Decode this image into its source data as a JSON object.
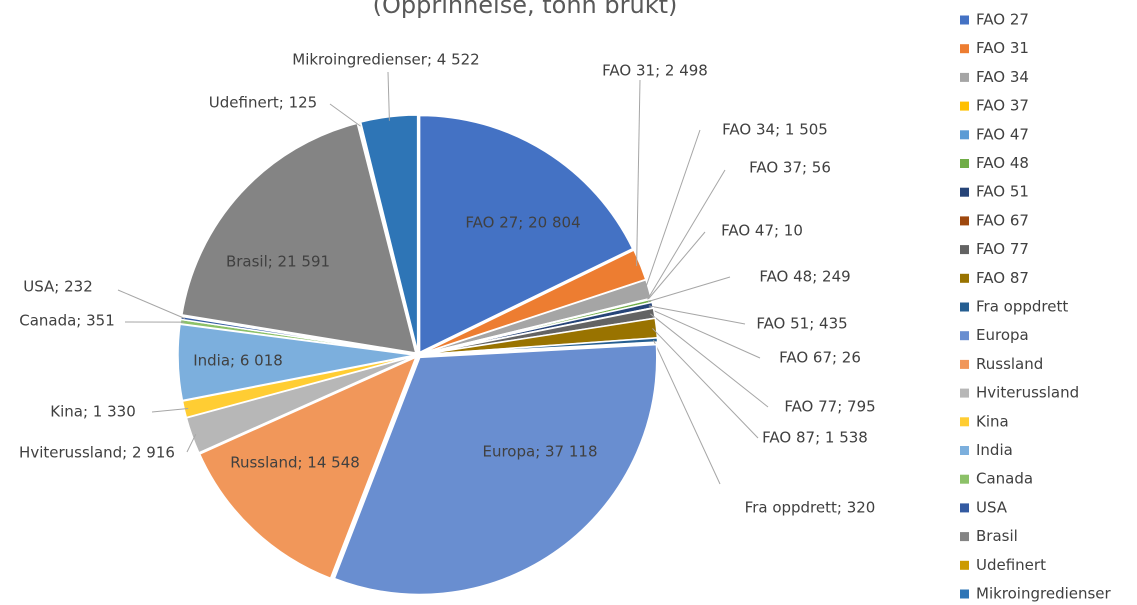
{
  "chart_data": {
    "type": "pie",
    "subtitle": "(Opprinnelse, tonn brukt)",
    "categories": [
      "FAO 27",
      "FAO 31",
      "FAO 34",
      "FAO 37",
      "FAO 47",
      "FAO 48",
      "FAO 51",
      "FAO 67",
      "FAO 77",
      "FAO 87",
      "Fra oppdrett",
      "Europa",
      "Russland",
      "Hviterussland",
      "Kina",
      "India",
      "Canada",
      "USA",
      "Brasil",
      "Udefinert",
      "Mikroingredienser"
    ],
    "values": [
      20804,
      2498,
      1505,
      56,
      10,
      249,
      435,
      26,
      795,
      1538,
      320,
      37118,
      14548,
      2916,
      1330,
      6018,
      351,
      232,
      21591,
      125,
      4522
    ],
    "data_labels": [
      "FAO 27; 20 804",
      "FAO 31; 2 498",
      "FAO 34; 1 505",
      "FAO 37; 56",
      "FAO 47; 10",
      "FAO 48; 249",
      "FAO 51; 435",
      "FAO 67; 26",
      "FAO 77; 795",
      "FAO 87; 1 538",
      "Fra oppdrett; 320",
      "Europa; 37 118",
      "Russland; 14 548",
      "Hviterussland; 2 916",
      "Kina; 1 330",
      "India; 6 018",
      "Canada; 351",
      "USA; 232",
      "Brasil; 21 591",
      "Udefinert; 125",
      "Mikroingredienser; 4 522"
    ],
    "colors": [
      "#4472c4",
      "#ed7d31",
      "#a5a5a5",
      "#ffc000",
      "#5b9bd5",
      "#70ad47",
      "#264478",
      "#9e480e",
      "#636363",
      "#997300",
      "#255e91",
      "#698ed0",
      "#f1975a",
      "#b7b7b7",
      "#ffcd33",
      "#7cafdd",
      "#8cc168",
      "#335aa1",
      "#848484",
      "#cc9a00",
      "#2e75b6"
    ],
    "legend": "right"
  }
}
